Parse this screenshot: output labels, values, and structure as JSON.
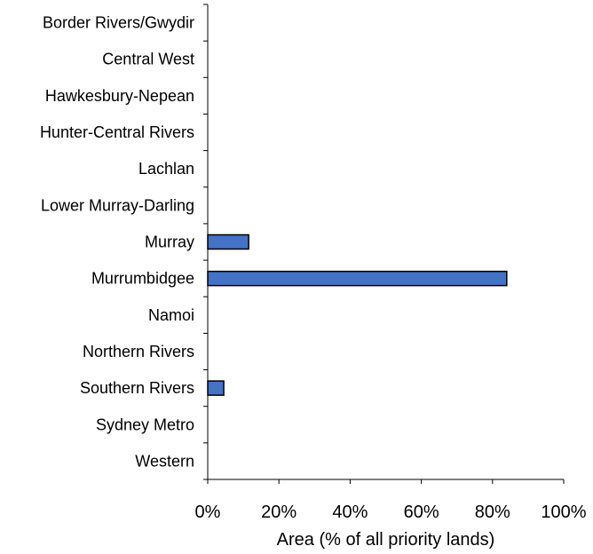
{
  "chart_data": {
    "type": "bar",
    "orientation": "horizontal",
    "categories": [
      "Border Rivers/Gwydir",
      "Central West",
      "Hawkesbury-Nepean",
      "Hunter-Central Rivers",
      "Lachlan",
      "Lower Murray-Darling",
      "Murray",
      "Murrumbidgee",
      "Namoi",
      "Northern Rivers",
      "Southern Rivers",
      "Sydney Metro",
      "Western"
    ],
    "values": [
      0,
      0,
      0,
      0,
      0,
      0,
      11.5,
      84,
      0,
      0,
      4.5,
      0,
      0
    ],
    "title": "",
    "xlabel": "Area (% of all priority lands)",
    "ylabel": "",
    "xlim": [
      0,
      100
    ],
    "xticks": [
      "0%",
      "20%",
      "40%",
      "60%",
      "80%",
      "100%"
    ],
    "grid": false,
    "legend": "none",
    "colors": {
      "bar_fill": "#4472C4",
      "bar_stroke": "#000000",
      "axis": "#000000"
    }
  }
}
